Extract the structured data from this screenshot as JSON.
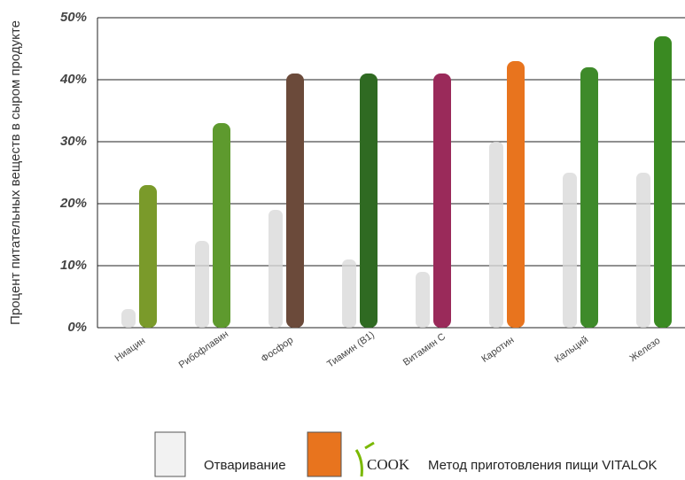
{
  "chart_data": {
    "type": "bar",
    "y_label": "Процент питательных веществ в сыром продукте",
    "categories": [
      "Ниацин",
      "Рибофлавин",
      "Фосфор",
      "Тиамин (B1)",
      "Витамин С",
      "Каротин",
      "Кальций",
      "Железо"
    ],
    "series": [
      {
        "name": "Отваривание",
        "color": "#d9d9d9",
        "values": [
          3,
          14,
          19,
          11,
          9,
          30,
          25,
          25
        ]
      },
      {
        "name": "Метод приготовления пищи VITALOK",
        "color": "#e8741e",
        "colors": [
          "#7a9a2a",
          "#5e9a2e",
          "#6b4a3a",
          "#2f6a22",
          "#9a2a5a",
          "#e8741e",
          "#3e8a2a",
          "#3a8a22"
        ],
        "values": [
          23,
          33,
          41,
          41,
          41,
          43,
          42,
          47
        ]
      }
    ],
    "logo_text": "COOK",
    "ylim": [
      0,
      50
    ],
    "yticks": [
      {
        "value": 0,
        "label": "0%"
      },
      {
        "value": 10,
        "label": "10%"
      },
      {
        "value": 20,
        "label": "20%"
      },
      {
        "value": 30,
        "label": "30%"
      },
      {
        "value": 40,
        "label": "40%"
      },
      {
        "value": 50,
        "label": "50%"
      }
    ],
    "grid": true
  }
}
